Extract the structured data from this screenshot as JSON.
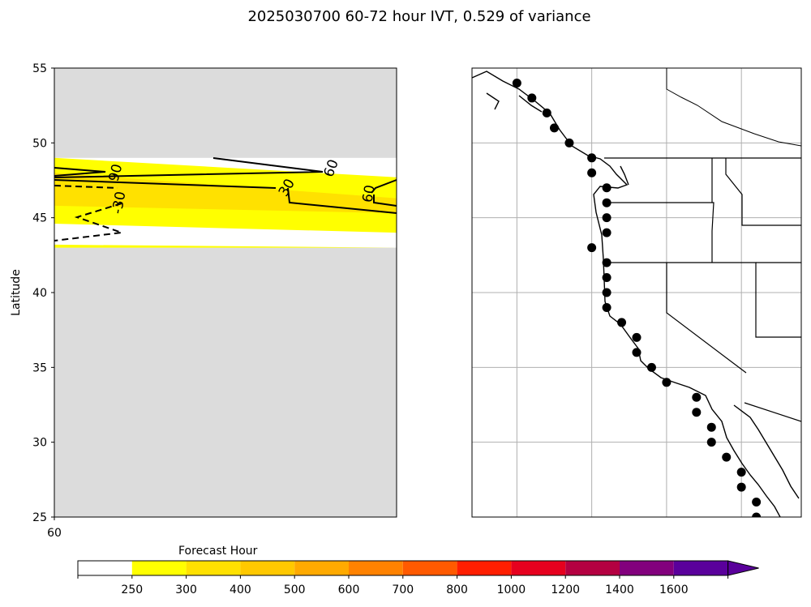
{
  "chart_data": [
    {
      "type": "heatmap",
      "title": "2025030700 60-72 hour IVT, 0.529 of variance",
      "xlabel": "Forecast Hour",
      "ylabel": "Latitude",
      "x_ticks": [
        "60"
      ],
      "y_ticks": [
        "25",
        "30",
        "35",
        "40",
        "45",
        "50",
        "55"
      ],
      "ylim": [
        25,
        55
      ],
      "bands": [
        {
          "lat_top_left": 49.0,
          "lat_top_right": 47.7,
          "lat_bot_left": 44.6,
          "lat_bot_right": 44.0,
          "color": "#ffff00"
        },
        {
          "lat_top_left": 48.0,
          "lat_top_right": 46.3,
          "lat_bot_left": 45.8,
          "lat_bot_right": 45.3,
          "color": "#ffe100"
        },
        {
          "lat_top_left": 43.2,
          "lat_top_right": 43.0,
          "lat_bot_left": 43.0,
          "lat_bot_right": 43.0,
          "color": "#ffff00"
        }
      ],
      "contour_labels": [
        {
          "text": "90",
          "lat": 48.0,
          "x_frac": 0.18,
          "angle": -75
        },
        {
          "text": "-30",
          "lat": 46.0,
          "x_frac": 0.19,
          "angle": -80
        },
        {
          "text": "60",
          "lat": 48.3,
          "x_frac": 0.81,
          "angle": -70
        },
        {
          "text": "30",
          "lat": 47.0,
          "x_frac": 0.68,
          "angle": -60
        },
        {
          "text": "60",
          "lat": 46.6,
          "x_frac": 0.92,
          "angle": -80
        }
      ],
      "colorbar": {
        "levels": [
          "250",
          "300",
          "400",
          "500",
          "600",
          "700",
          "800",
          "1000",
          "1200",
          "1400",
          "1600"
        ],
        "colors": [
          "#ffffff",
          "#ffff00",
          "#ffe100",
          "#ffc800",
          "#ffaa00",
          "#ff8200",
          "#ff5a00",
          "#ff1e00",
          "#e6001e",
          "#b40041",
          "#82007d",
          "#5a009b"
        ]
      }
    },
    {
      "type": "scatter",
      "lon_range": [
        -135,
        -113
      ],
      "lat_range": [
        25,
        55
      ],
      "grid_lons": [
        -132,
        -127,
        -122,
        -117
      ],
      "grid_lats": [
        30,
        35,
        40,
        45,
        50
      ],
      "points": [
        [
          -132,
          54
        ],
        [
          -131,
          53
        ],
        [
          -130,
          52
        ],
        [
          -129.5,
          51
        ],
        [
          -128.5,
          50
        ],
        [
          -127,
          49
        ],
        [
          -127,
          48
        ],
        [
          -126,
          47
        ],
        [
          -126,
          46
        ],
        [
          -126,
          45
        ],
        [
          -126,
          44
        ],
        [
          -127,
          43
        ],
        [
          -126,
          42
        ],
        [
          -126,
          41
        ],
        [
          -126,
          40
        ],
        [
          -126,
          39
        ],
        [
          -125,
          38
        ],
        [
          -124,
          37
        ],
        [
          -124,
          36
        ],
        [
          -123,
          35
        ],
        [
          -122,
          34
        ],
        [
          -120,
          33
        ],
        [
          -120,
          32
        ],
        [
          -119,
          31
        ],
        [
          -119,
          30
        ],
        [
          -118,
          29
        ],
        [
          -117,
          28
        ],
        [
          -117,
          27
        ],
        [
          -116,
          26
        ],
        [
          -116,
          25
        ]
      ]
    }
  ]
}
